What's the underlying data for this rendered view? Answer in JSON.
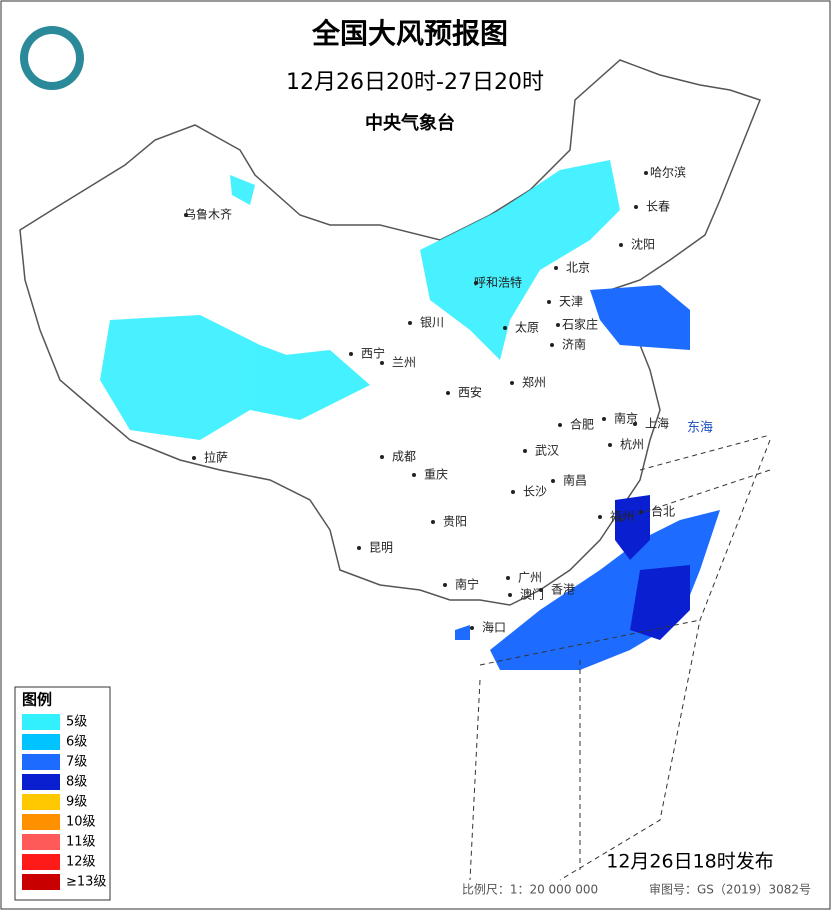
{
  "header": {
    "title": "全国大风预报图",
    "period": "12月26日20时-27日20时",
    "issuer": "中央气象台"
  },
  "cities": [
    "乌鲁木齐",
    "哈尔滨",
    "长春",
    "沈阳",
    "北京",
    "呼和浩特",
    "天津",
    "银川",
    "太原",
    "石家庄",
    "济南",
    "西宁",
    "兰州",
    "郑州",
    "西安",
    "南京",
    "合肥",
    "上海",
    "杭州",
    "拉萨",
    "成都",
    "武汉",
    "重庆",
    "南昌",
    "长沙",
    "福州",
    "台北",
    "贵阳",
    "昆明",
    "南宁",
    "广州",
    "澳门",
    "香港",
    "海口"
  ],
  "seas": [
    "东海"
  ],
  "legend": {
    "title": "图例",
    "items": [
      {
        "label": "5级",
        "color": "#33f0ff"
      },
      {
        "label": "6级",
        "color": "#00c3ff"
      },
      {
        "label": "7级",
        "color": "#1e6cff"
      },
      {
        "label": "8级",
        "color": "#0a1fd0"
      },
      {
        "label": "9级",
        "color": "#ffc800"
      },
      {
        "label": "10级",
        "color": "#ff9000"
      },
      {
        "label": "11级",
        "color": "#ff5a5a"
      },
      {
        "label": "12级",
        "color": "#ff1a1a"
      },
      {
        "label": "≥13级",
        "color": "#c80000"
      }
    ]
  },
  "footer": {
    "issued": "12月26日18时发布",
    "scale": "比例尺：1：20 000 000",
    "approval": "审图号：GS（2019）3082号"
  }
}
